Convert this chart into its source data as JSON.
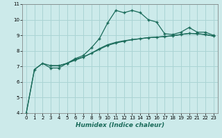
{
  "xlabel": "Humidex (Indice chaleur)",
  "bg_color": "#cceaea",
  "line_color": "#1a6b5a",
  "grid_color": "#aad4d4",
  "xlim": [
    -0.5,
    23.5
  ],
  "ylim": [
    4,
    11
  ],
  "yticks": [
    4,
    5,
    6,
    7,
    8,
    9,
    10,
    11
  ],
  "xticks": [
    0,
    1,
    2,
    3,
    4,
    5,
    6,
    7,
    8,
    9,
    10,
    11,
    12,
    13,
    14,
    15,
    16,
    17,
    18,
    19,
    20,
    21,
    22,
    23
  ],
  "line1_x": [
    0,
    1,
    2,
    3,
    4,
    5,
    6,
    7,
    8,
    9,
    10,
    11,
    12,
    13,
    14,
    15,
    16,
    17,
    18,
    19,
    20,
    21,
    22,
    23
  ],
  "line1_y": [
    4.0,
    6.8,
    7.2,
    6.9,
    6.9,
    7.2,
    7.5,
    7.7,
    8.2,
    8.8,
    9.8,
    10.6,
    10.45,
    10.6,
    10.45,
    10.0,
    9.85,
    9.1,
    9.05,
    9.2,
    9.5,
    9.2,
    9.2,
    9.0
  ],
  "line2_x": [
    0,
    1,
    2,
    3,
    4,
    5,
    6,
    7,
    8,
    9,
    10,
    11,
    12,
    13,
    14,
    15,
    16,
    17,
    18,
    19,
    20,
    21,
    22,
    23
  ],
  "line2_y": [
    4.0,
    6.8,
    7.2,
    7.05,
    7.05,
    7.2,
    7.45,
    7.6,
    7.85,
    8.15,
    8.4,
    8.55,
    8.65,
    8.72,
    8.78,
    8.85,
    8.88,
    8.92,
    8.97,
    9.05,
    9.12,
    9.1,
    9.05,
    8.95
  ],
  "line3_x": [
    3,
    4,
    5,
    6,
    7,
    8,
    9,
    10,
    11,
    12,
    13,
    14,
    15,
    16,
    17,
    18,
    19,
    20,
    21,
    22,
    23
  ],
  "line3_y": [
    7.05,
    7.05,
    7.2,
    7.4,
    7.6,
    7.85,
    8.1,
    8.35,
    8.5,
    8.62,
    8.72,
    8.78,
    8.85,
    8.88,
    8.92,
    8.97,
    9.05,
    9.12,
    9.1,
    9.05,
    8.95
  ],
  "marker": "+"
}
